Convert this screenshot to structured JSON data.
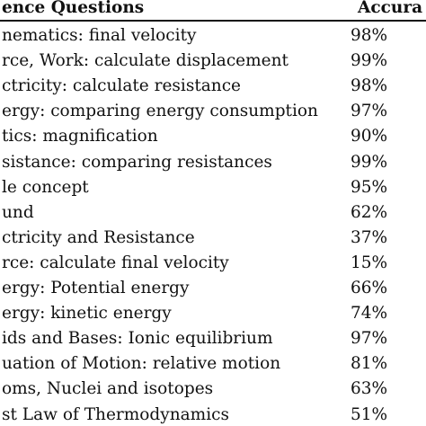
{
  "table": {
    "header": [
      "ence Questions",
      "Accura"
    ],
    "rows": [
      [
        "nematics: final velocity",
        "98%"
      ],
      [
        "rce, Work: calculate displacement",
        "99%"
      ],
      [
        "ctricity: calculate resistance",
        "98%"
      ],
      [
        "ergy: comparing energy consumption",
        "97%"
      ],
      [
        "tics: magnification",
        "90%"
      ],
      [
        "sistance: comparing resistances",
        "99%"
      ],
      [
        "le concept",
        "95%"
      ],
      [
        "und",
        "62%"
      ],
      [
        "ctricity and Resistance",
        "37%"
      ],
      [
        "rce: calculate final velocity",
        "15%"
      ],
      [
        "ergy: Potential energy",
        "66%"
      ],
      [
        "ergy: kinetic energy",
        "74%"
      ],
      [
        "ids and Bases: Ionic equilibrium",
        "97%"
      ],
      [
        "uation of Motion: relative motion",
        "81%"
      ],
      [
        "oms, Nuclei and isotopes",
        "63%"
      ],
      [
        "st Law of Thermodynamics",
        "51%"
      ]
    ]
  }
}
